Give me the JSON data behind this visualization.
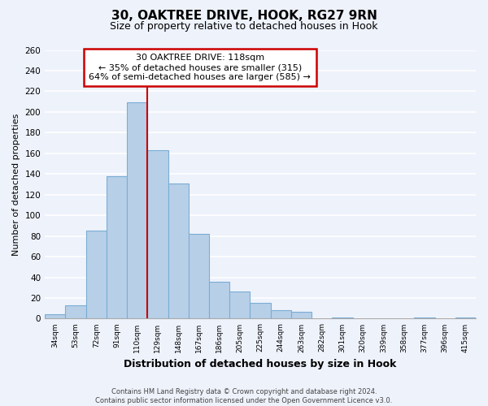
{
  "title_line1": "30, OAKTREE DRIVE, HOOK, RG27 9RN",
  "title_line2": "Size of property relative to detached houses in Hook",
  "xlabel": "Distribution of detached houses by size in Hook",
  "ylabel": "Number of detached properties",
  "categories": [
    "34sqm",
    "53sqm",
    "72sqm",
    "91sqm",
    "110sqm",
    "129sqm",
    "148sqm",
    "167sqm",
    "186sqm",
    "205sqm",
    "225sqm",
    "244sqm",
    "263sqm",
    "282sqm",
    "301sqm",
    "320sqm",
    "339sqm",
    "358sqm",
    "377sqm",
    "396sqm",
    "415sqm"
  ],
  "values": [
    4,
    13,
    85,
    138,
    209,
    163,
    131,
    82,
    36,
    26,
    15,
    8,
    7,
    0,
    1,
    0,
    0,
    0,
    1,
    0,
    1
  ],
  "bar_color": "#b8cfe8",
  "bar_edge_color": "#7aadd4",
  "vline_color": "#cc0000",
  "box_edge_color": "#cc0000",
  "annotation_title": "30 OAKTREE DRIVE: 118sqm",
  "annotation_line1": "← 35% of detached houses are smaller (315)",
  "annotation_line2": "64% of semi-detached houses are larger (585) →",
  "ylim": [
    0,
    260
  ],
  "yticks": [
    0,
    20,
    40,
    60,
    80,
    100,
    120,
    140,
    160,
    180,
    200,
    220,
    240,
    260
  ],
  "footer_line1": "Contains HM Land Registry data © Crown copyright and database right 2024.",
  "footer_line2": "Contains public sector information licensed under the Open Government Licence v3.0.",
  "background_color": "#eef2fb",
  "grid_color": "#ffffff"
}
